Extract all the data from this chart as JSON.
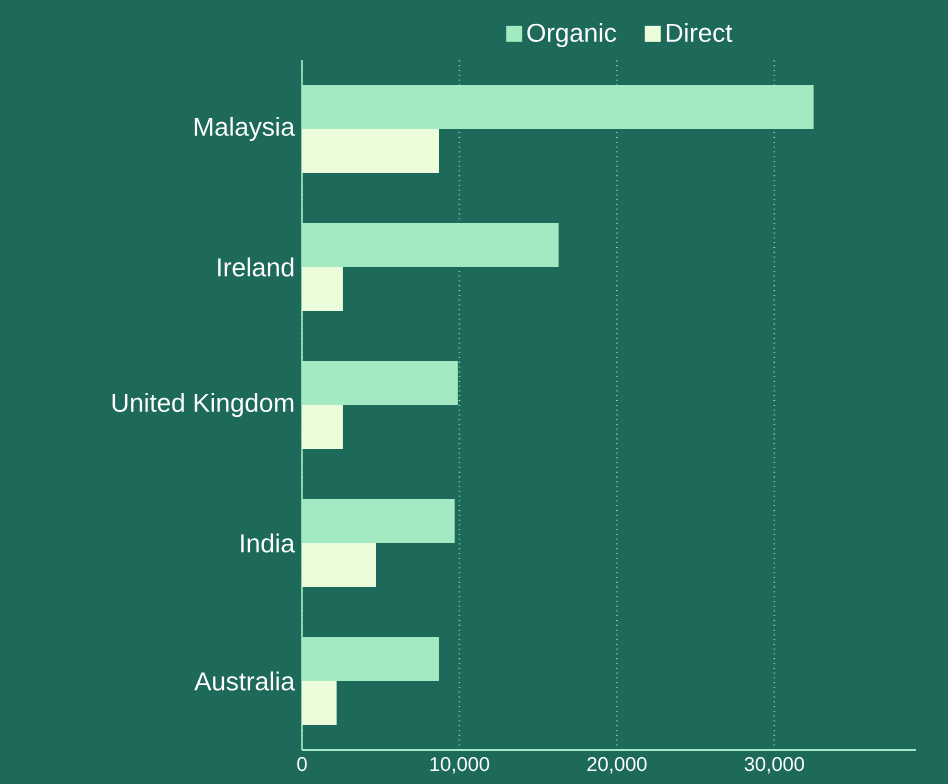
{
  "chart_data": {
    "type": "bar",
    "orientation": "horizontal",
    "categories": [
      "Malaysia",
      "Ireland",
      "United Kingdom",
      "India",
      "Australia"
    ],
    "series": [
      {
        "name": "Organic",
        "color": "#a3e9c1",
        "values": [
          32500,
          16300,
          9900,
          9700,
          8700
        ]
      },
      {
        "name": "Direct",
        "color": "#ebfddb",
        "values": [
          8700,
          2600,
          2600,
          4700,
          2200
        ]
      }
    ],
    "xlim": [
      0,
      39000
    ],
    "xticks": [
      0,
      {
        "value": 10000,
        "label": "10,000"
      },
      {
        "value": 20000,
        "label": "20,000"
      },
      {
        "value": 30000,
        "label": "30,000"
      }
    ],
    "grid": "x",
    "legend": "top"
  }
}
